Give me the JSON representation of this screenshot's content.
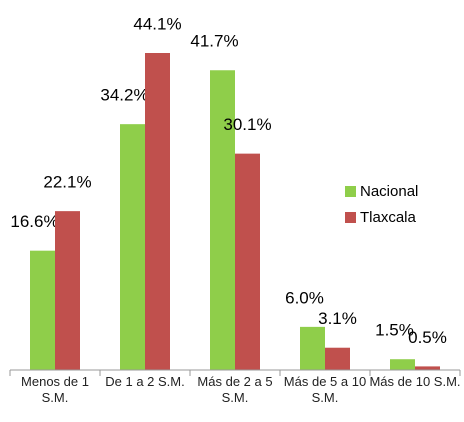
{
  "chart_data": {
    "type": "bar",
    "categories": [
      "Menos de 1 S.M.",
      "De 1 a 2 S.M.",
      "Más de 2 a 5 S.M.",
      "Más de 5 a 10 S.M.",
      "Más de 10 S.M."
    ],
    "series": [
      {
        "name": "Nacional",
        "color": "#8fce4a",
        "values": [
          16.6,
          34.2,
          41.7,
          6.0,
          1.5
        ],
        "value_labels": [
          "16.6%",
          "34.2%",
          "41.7%",
          "6.0%",
          "1.5%"
        ]
      },
      {
        "name": "Tlaxcala",
        "color": "#c0504d",
        "values": [
          22.1,
          44.1,
          30.1,
          3.1,
          0.5
        ],
        "value_labels": [
          "22.1%",
          "44.1%",
          "30.1%",
          "3.1%",
          "0.5%"
        ]
      }
    ],
    "legend": "right"
  }
}
